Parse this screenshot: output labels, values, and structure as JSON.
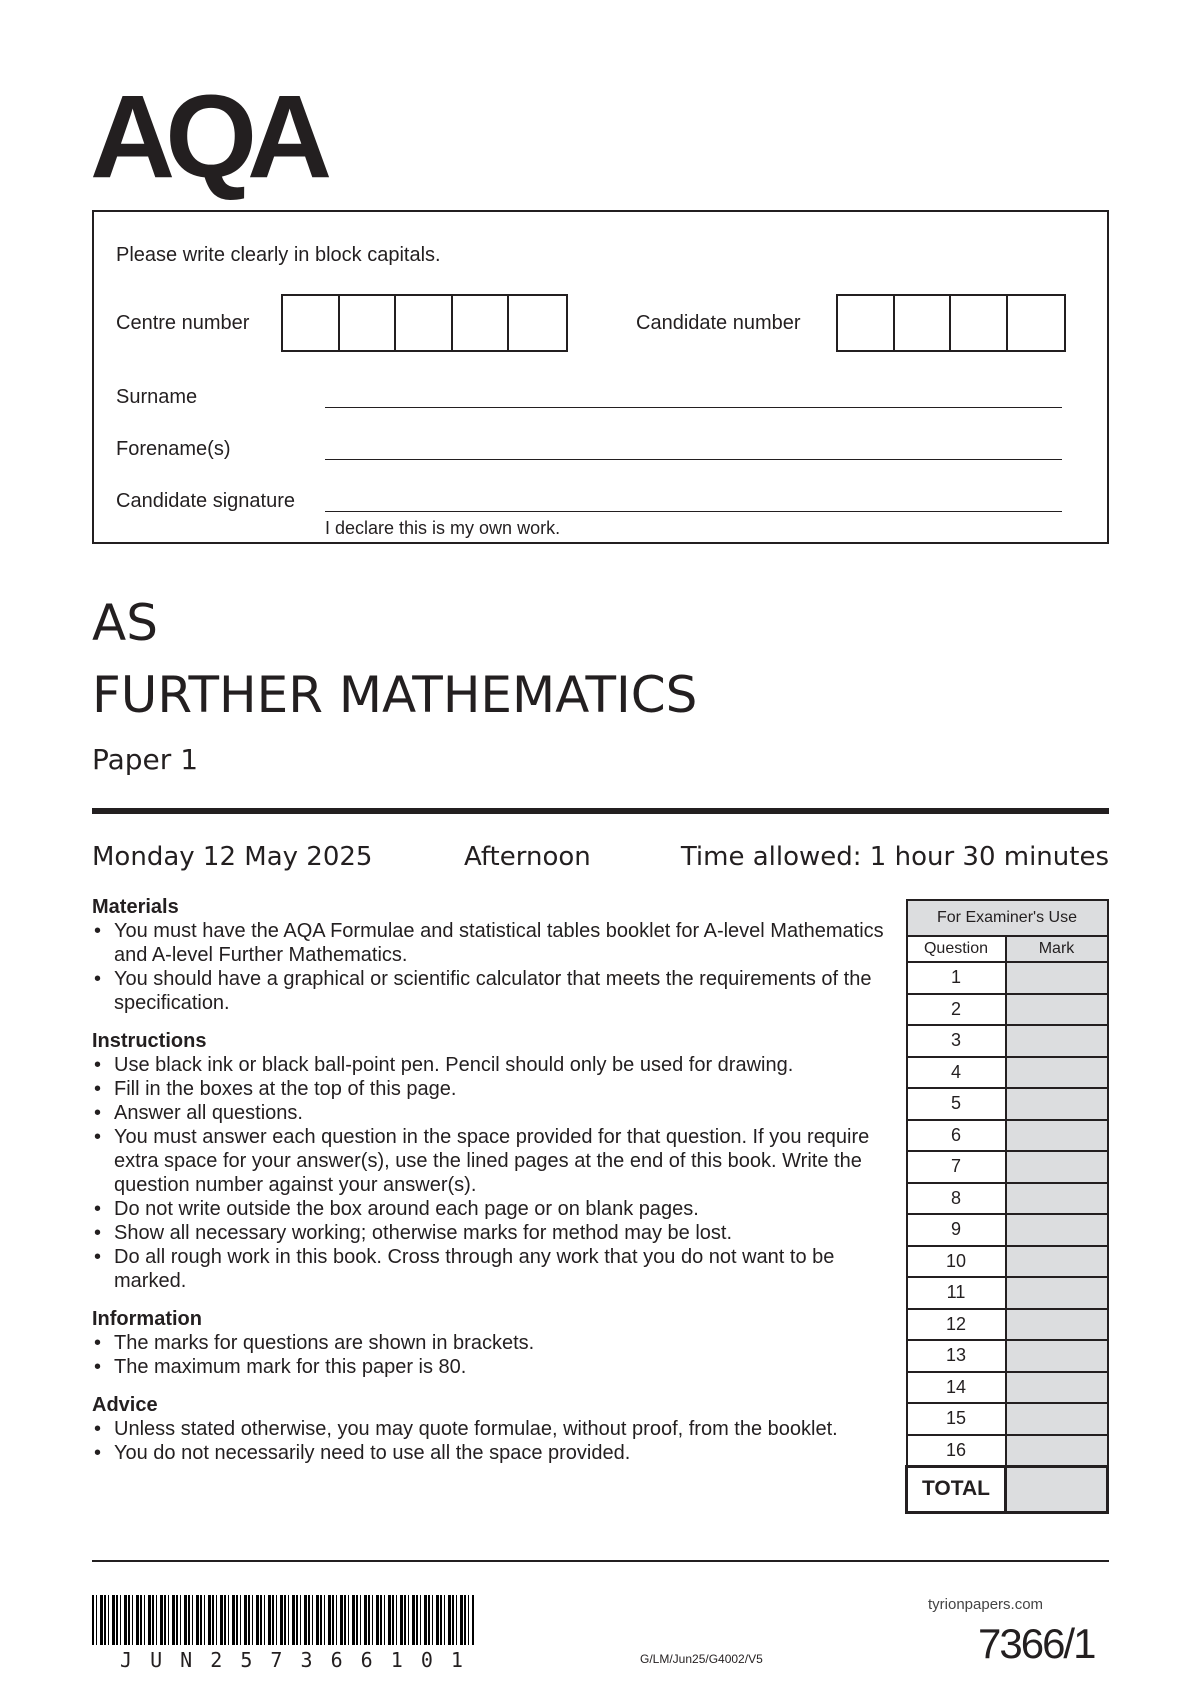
{
  "logo": "AQA",
  "form": {
    "instruction": "Please write clearly in block capitals.",
    "centre_label": "Centre number",
    "candidate_label": "Candidate number",
    "surname_label": "Surname",
    "forename_label": "Forename(s)",
    "signature_label": "Candidate signature",
    "declaration": "I declare this is my own work."
  },
  "exam": {
    "level": "AS",
    "subject": "FURTHER MATHEMATICS",
    "paper": "Paper 1",
    "date": "Monday 12 May 2025",
    "session": "Afternoon",
    "time": "Time allowed: 1 hour 30 minutes"
  },
  "sections": [
    {
      "heading": "Materials",
      "items": [
        "You must have the AQA Formulae and statistical tables booklet for A-level Mathematics and A-level Further Mathematics.",
        "You should have a graphical or scientific calculator that meets the requirements of the specification."
      ]
    },
    {
      "heading": "Instructions",
      "items": [
        "Use black ink or black ball-point pen.  Pencil should only be used for drawing.",
        "Fill in the boxes at the top of this page.",
        "Answer all questions.",
        "You must answer each question in the space provided for that question. If you require extra space for your answer(s), use the lined pages at the end of this book.  Write the question number against your answer(s).",
        "Do not write outside the box around each page or on blank pages.",
        "Show all necessary working; otherwise marks for method may be lost.",
        "Do all rough work in this book.  Cross through any work that you do not want to be marked."
      ]
    },
    {
      "heading": "Information",
      "items": [
        "The marks for questions are shown in brackets.",
        "The maximum mark for this paper is 80."
      ]
    },
    {
      "heading": "Advice",
      "items": [
        "Unless stated otherwise, you may quote formulae, without proof, from the booklet.",
        "You do not necessarily need to use all the space provided."
      ]
    }
  ],
  "examiner": {
    "title": "For Examiner's Use",
    "col_question": "Question",
    "col_mark": "Mark",
    "questions": [
      "1",
      "2",
      "3",
      "4",
      "5",
      "6",
      "7",
      "8",
      "9",
      "10",
      "11",
      "12",
      "13",
      "14",
      "15",
      "16"
    ],
    "total": "TOTAL"
  },
  "footer": {
    "barcode_text": "J U N 2 5 7 3 6 6 1 0 1",
    "ref": "G/LM/Jun25/G4002/V5",
    "watermark": "tyrionpapers.com",
    "code": "7366/1"
  }
}
